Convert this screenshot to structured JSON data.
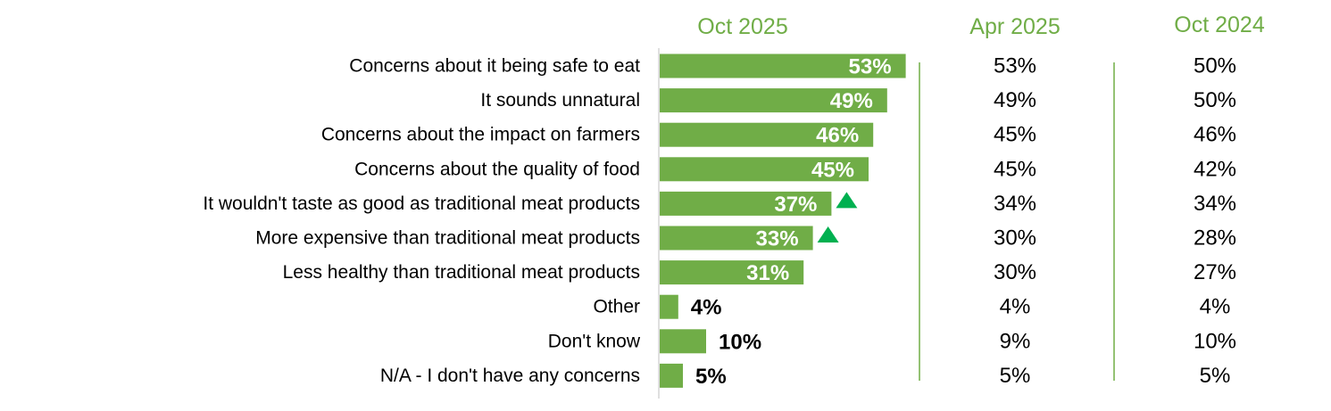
{
  "chart_data": {
    "type": "bar",
    "orientation": "horizontal",
    "categories": [
      "Concerns about it being safe to eat",
      "It sounds unnatural",
      "Concerns about the impact on farmers",
      "Concerns about the quality of food",
      "It wouldn't taste as good as traditional meat products",
      "More expensive than traditional meat products",
      "Less healthy than traditional meat products",
      "Other",
      "Don't know",
      "N/A - I don't have any concerns"
    ],
    "series": [
      {
        "name": "Oct 2025",
        "values": [
          53,
          49,
          46,
          45,
          37,
          33,
          31,
          4,
          10,
          5
        ],
        "labels": [
          "53%",
          "49%",
          "46%",
          "45%",
          "37%",
          "33%",
          "31%",
          "4%",
          "10%",
          "5%"
        ],
        "increase_marker": [
          false,
          false,
          false,
          false,
          true,
          true,
          false,
          false,
          false,
          false
        ]
      },
      {
        "name": "Apr 2025",
        "values": [
          53,
          49,
          45,
          45,
          34,
          30,
          30,
          4,
          9,
          5
        ],
        "labels": [
          "53%",
          "49%",
          "45%",
          "45%",
          "34%",
          "30%",
          "30%",
          "4%",
          "9%",
          "5%"
        ]
      },
      {
        "name": "Oct 2024",
        "values": [
          50,
          50,
          46,
          42,
          34,
          28,
          27,
          4,
          10,
          5
        ],
        "labels": [
          "50%",
          "50%",
          "46%",
          "42%",
          "34%",
          "28%",
          "27%",
          "4%",
          "10%",
          "5%"
        ]
      }
    ],
    "colors": {
      "bar": "#70ad47",
      "header": "#70ad47",
      "marker": "#00b050",
      "divider": "#70ad47",
      "axis": "#bfbfbf",
      "text": "#000000",
      "bar_label": "#ffffff"
    }
  }
}
